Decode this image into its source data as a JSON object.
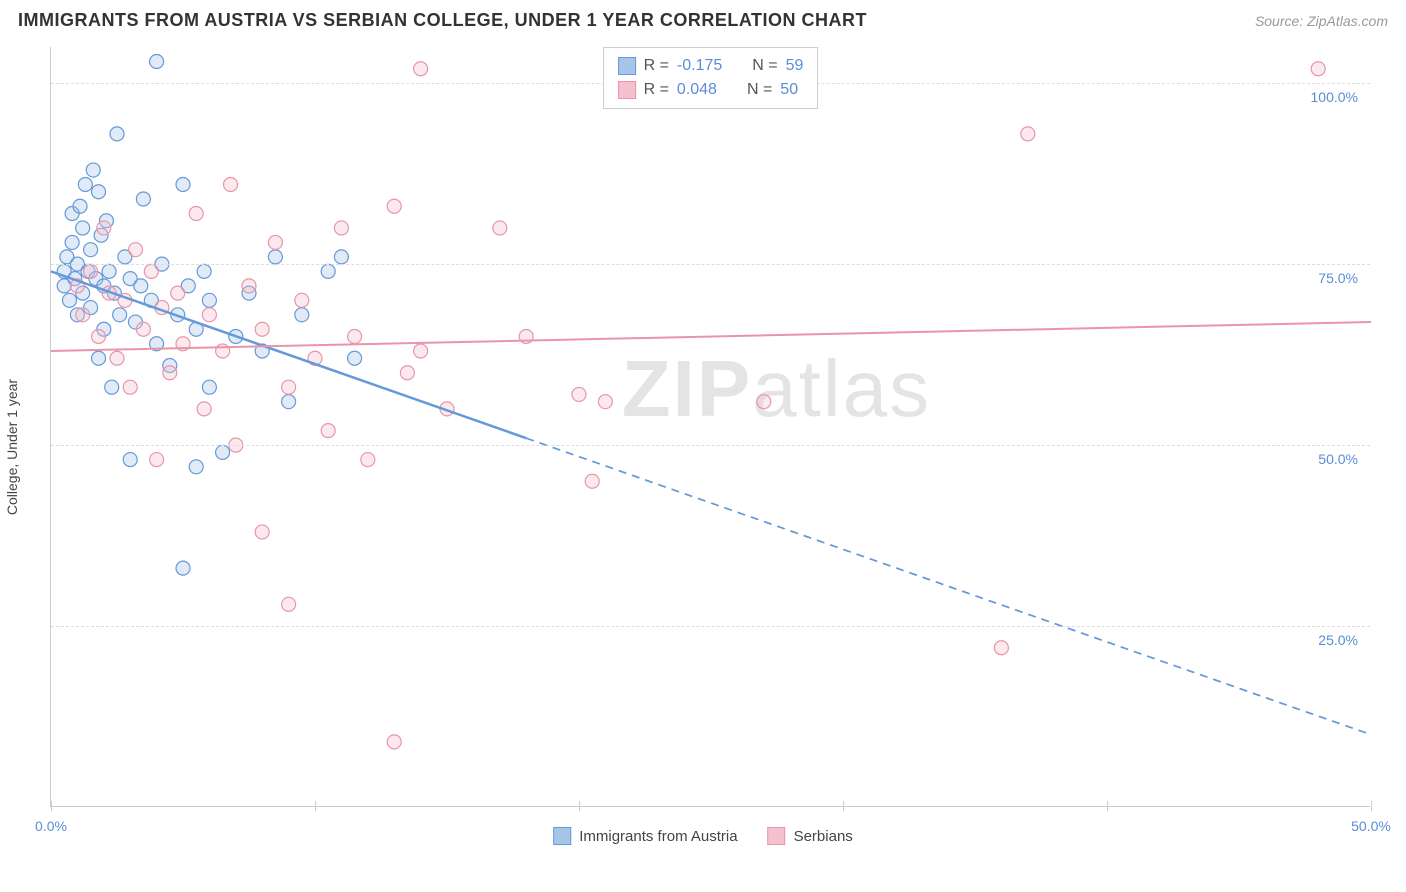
{
  "header": {
    "title": "IMMIGRANTS FROM AUSTRIA VS SERBIAN COLLEGE, UNDER 1 YEAR CORRELATION CHART",
    "source": "Source: ZipAtlas.com"
  },
  "watermark": {
    "zip": "ZIP",
    "atlas": "atlas"
  },
  "chart": {
    "type": "scatter",
    "y_axis_title": "College, Under 1 year",
    "xlim": [
      0,
      50
    ],
    "ylim": [
      0,
      105
    ],
    "x_ticks": [
      0,
      10,
      20,
      30,
      40,
      50
    ],
    "x_tick_labels": [
      "0.0%",
      "",
      "",
      "",
      "",
      "50.0%"
    ],
    "y_gridlines": [
      25,
      50,
      75,
      100
    ],
    "y_tick_labels": [
      "25.0%",
      "50.0%",
      "75.0%",
      "100.0%"
    ],
    "grid_color": "#dddddd",
    "axis_color": "#cccccc",
    "tick_label_color": "#5b8dd6",
    "background_color": "#ffffff",
    "marker_radius": 7,
    "marker_stroke_width": 1.2,
    "marker_fill_opacity": 0.35,
    "series": [
      {
        "name": "Immigrants from Austria",
        "color_stroke": "#6699d8",
        "color_fill": "#a7c5e8",
        "r_value": "-0.175",
        "n_value": "59",
        "trend": {
          "x1": 0,
          "y1": 74,
          "x2": 50,
          "y2": 10,
          "solid_until_x": 18,
          "width": 2.5
        },
        "points": [
          [
            0.5,
            72
          ],
          [
            0.5,
            74
          ],
          [
            0.6,
            76
          ],
          [
            0.7,
            70
          ],
          [
            0.8,
            82
          ],
          [
            0.8,
            78
          ],
          [
            0.9,
            73
          ],
          [
            1.0,
            75
          ],
          [
            1.0,
            68
          ],
          [
            1.1,
            83
          ],
          [
            1.2,
            80
          ],
          [
            1.2,
            71
          ],
          [
            1.3,
            86
          ],
          [
            1.4,
            74
          ],
          [
            1.5,
            69
          ],
          [
            1.5,
            77
          ],
          [
            1.6,
            88
          ],
          [
            1.7,
            73
          ],
          [
            1.8,
            85
          ],
          [
            1.8,
            62
          ],
          [
            1.9,
            79
          ],
          [
            2.0,
            72
          ],
          [
            2.0,
            66
          ],
          [
            2.1,
            81
          ],
          [
            2.2,
            74
          ],
          [
            2.3,
            58
          ],
          [
            2.4,
            71
          ],
          [
            2.5,
            93
          ],
          [
            2.6,
            68
          ],
          [
            2.8,
            76
          ],
          [
            3.0,
            73
          ],
          [
            3.0,
            48
          ],
          [
            3.2,
            67
          ],
          [
            3.4,
            72
          ],
          [
            3.5,
            84
          ],
          [
            3.8,
            70
          ],
          [
            4.0,
            103
          ],
          [
            4.0,
            64
          ],
          [
            4.2,
            75
          ],
          [
            4.5,
            61
          ],
          [
            4.8,
            68
          ],
          [
            5.0,
            86
          ],
          [
            5.0,
            33
          ],
          [
            5.2,
            72
          ],
          [
            5.5,
            66
          ],
          [
            5.5,
            47
          ],
          [
            5.8,
            74
          ],
          [
            6.0,
            58
          ],
          [
            6.0,
            70
          ],
          [
            6.5,
            49
          ],
          [
            7.0,
            65
          ],
          [
            7.5,
            71
          ],
          [
            8.0,
            63
          ],
          [
            8.5,
            76
          ],
          [
            9.0,
            56
          ],
          [
            9.5,
            68
          ],
          [
            10.5,
            74
          ],
          [
            11,
            76
          ],
          [
            11.5,
            62
          ]
        ]
      },
      {
        "name": "Serbians",
        "color_stroke": "#e895ab",
        "color_fill": "#f5c1cf",
        "r_value": "0.048",
        "n_value": "50",
        "trend": {
          "x1": 0,
          "y1": 63,
          "x2": 50,
          "y2": 67,
          "solid_until_x": 50,
          "width": 2
        },
        "points": [
          [
            1.0,
            72
          ],
          [
            1.2,
            68
          ],
          [
            1.5,
            74
          ],
          [
            1.8,
            65
          ],
          [
            2.0,
            80
          ],
          [
            2.2,
            71
          ],
          [
            2.5,
            62
          ],
          [
            2.8,
            70
          ],
          [
            3.0,
            58
          ],
          [
            3.2,
            77
          ],
          [
            3.5,
            66
          ],
          [
            3.8,
            74
          ],
          [
            4.0,
            48
          ],
          [
            4.2,
            69
          ],
          [
            4.5,
            60
          ],
          [
            4.8,
            71
          ],
          [
            5.0,
            64
          ],
          [
            5.5,
            82
          ],
          [
            5.8,
            55
          ],
          [
            6.0,
            68
          ],
          [
            6.5,
            63
          ],
          [
            6.8,
            86
          ],
          [
            7.0,
            50
          ],
          [
            7.5,
            72
          ],
          [
            8.0,
            66
          ],
          [
            8.0,
            38
          ],
          [
            8.5,
            78
          ],
          [
            9.0,
            58
          ],
          [
            9.0,
            28
          ],
          [
            9.5,
            70
          ],
          [
            10.0,
            62
          ],
          [
            10.5,
            52
          ],
          [
            11.0,
            80
          ],
          [
            11.5,
            65
          ],
          [
            12.0,
            48
          ],
          [
            13.0,
            83
          ],
          [
            13,
            9
          ],
          [
            13.5,
            60
          ],
          [
            14.0,
            102
          ],
          [
            14.0,
            63
          ],
          [
            15.0,
            55
          ],
          [
            17.0,
            80
          ],
          [
            18.0,
            65
          ],
          [
            20.0,
            57
          ],
          [
            20.5,
            45
          ],
          [
            21,
            56
          ],
          [
            27.0,
            56
          ],
          [
            36.0,
            22
          ],
          [
            37.0,
            93
          ],
          [
            48.0,
            102
          ]
        ]
      }
    ],
    "legend_top": {
      "r_label": "R =",
      "n_label": "N ="
    },
    "legend_bottom": [
      {
        "label": "Immigrants from Austria",
        "color_stroke": "#6699d8",
        "color_fill": "#a7c5e8"
      },
      {
        "label": "Serbians",
        "color_stroke": "#e895ab",
        "color_fill": "#f5c1cf"
      }
    ]
  }
}
